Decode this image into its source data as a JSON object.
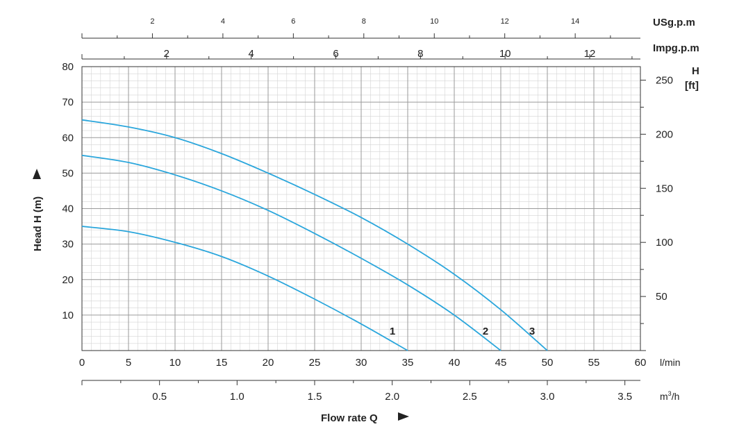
{
  "chart_data": {
    "type": "line",
    "xlabel": "Flow rate Q",
    "ylabel": "Head H (m)",
    "x_unit_lmin": "l/min",
    "x_unit_m3h": "m",
    "x_unit_m3h_sup": "3",
    "x_unit_m3h_tail": "/h",
    "x_unit_usg": "USg.p.m",
    "x_unit_impg": "Impg.p.m",
    "y_unit_ft_top": "H",
    "y_unit_ft_bottom": "[ft]",
    "xlim_lmin": [
      0,
      60
    ],
    "ylim_m": [
      0,
      80
    ],
    "grid": true,
    "ticks": {
      "lmin": [
        "0",
        "5",
        "10",
        "15",
        "20",
        "25",
        "30",
        "35",
        "40",
        "45",
        "50",
        "55",
        "60"
      ],
      "m3h": [
        "0.5",
        "1.0",
        "1.5",
        "2.0",
        "2.5",
        "3.0",
        "3.5"
      ],
      "usg": [
        "2",
        "4",
        "6",
        "8",
        "10",
        "12",
        "14"
      ],
      "impg": [
        "2",
        "4",
        "6",
        "8",
        "10",
        "12"
      ],
      "head_m": [
        "10",
        "20",
        "30",
        "40",
        "50",
        "60",
        "70",
        "80"
      ],
      "head_ft": [
        "50",
        "100",
        "150",
        "200",
        "250"
      ]
    },
    "series": [
      {
        "name": "1",
        "x": [
          0,
          5,
          10,
          15,
          20,
          25,
          30,
          35
        ],
        "y": [
          35,
          33.5,
          30.5,
          26.5,
          21,
          14.5,
          7.5,
          0
        ]
      },
      {
        "name": "2",
        "x": [
          0,
          5,
          10,
          15,
          20,
          25,
          30,
          35,
          40,
          45
        ],
        "y": [
          55,
          53,
          49.5,
          45,
          39.5,
          33,
          26,
          18.5,
          10,
          0
        ]
      },
      {
        "name": "3",
        "x": [
          0,
          5,
          10,
          15,
          20,
          25,
          30,
          35,
          40,
          45,
          50
        ],
        "y": [
          65,
          63,
          60,
          55.5,
          50,
          44,
          37.5,
          30,
          21.5,
          11.5,
          0
        ]
      }
    ],
    "colors": {
      "curve": "#2aa6dc",
      "major_grid": "#9a9a9a",
      "minor_grid": "#d4d4d4",
      "axis": "#333333"
    }
  }
}
